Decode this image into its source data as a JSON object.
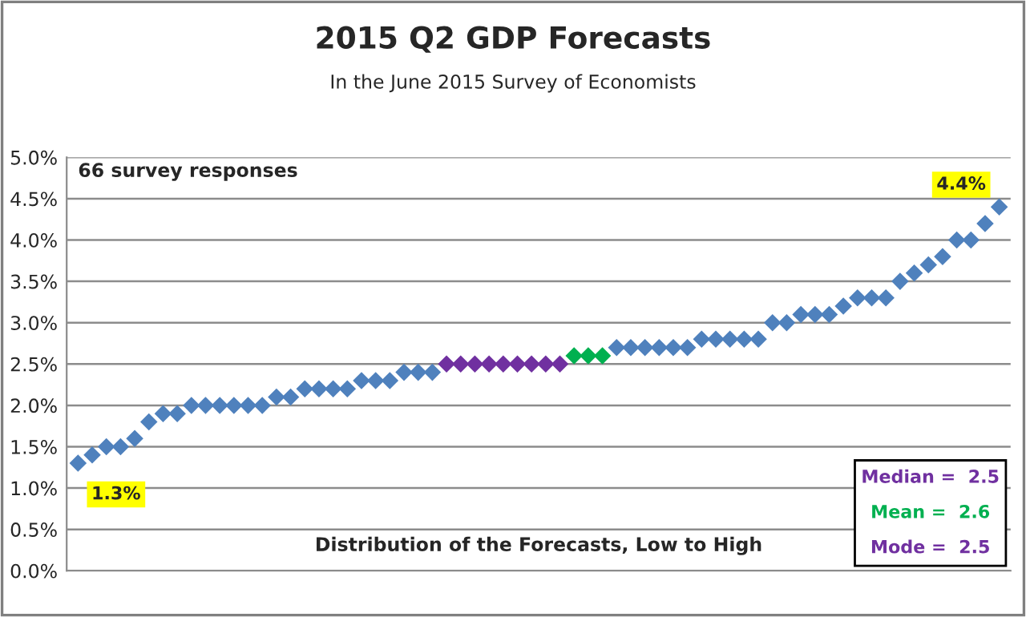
{
  "chart_data": {
    "type": "scatter",
    "title": "2015 Q2 GDP Forecasts",
    "subtitle": "In the June 2015 Survey of Economists",
    "categories": [
      null,
      null,
      null,
      null,
      null,
      null,
      null,
      null,
      null,
      null,
      null,
      null,
      null,
      null,
      null,
      null,
      null,
      null,
      null,
      null,
      null,
      null,
      null,
      null,
      null,
      null,
      null,
      null,
      null,
      null,
      null,
      null,
      null,
      null,
      null,
      null,
      null,
      null,
      null,
      null,
      null,
      null,
      null,
      null,
      null,
      null,
      null,
      null,
      null,
      null,
      null,
      null,
      null,
      null,
      null,
      null,
      null,
      null,
      null,
      null,
      null,
      null,
      null,
      null,
      null,
      null
    ],
    "values": [
      1.3,
      1.4,
      1.5,
      1.5,
      1.6,
      1.8,
      1.9,
      1.9,
      2.0,
      2.0,
      2.0,
      2.0,
      2.0,
      2.0,
      2.1,
      2.1,
      2.2,
      2.2,
      2.2,
      2.2,
      2.3,
      2.3,
      2.3,
      2.4,
      2.4,
      2.4,
      2.5,
      2.5,
      2.5,
      2.5,
      2.5,
      2.5,
      2.5,
      2.5,
      2.5,
      2.6,
      2.6,
      2.6,
      2.7,
      2.7,
      2.7,
      2.7,
      2.7,
      2.7,
      2.8,
      2.8,
      2.8,
      2.8,
      2.8,
      3.0,
      3.0,
      3.1,
      3.1,
      3.1,
      3.2,
      3.3,
      3.3,
      3.3,
      3.5,
      3.6,
      3.7,
      3.8,
      4.0,
      4.0,
      4.2,
      4.4
    ],
    "colors": [
      "#4f81bd",
      "#4f81bd",
      "#4f81bd",
      "#4f81bd",
      "#4f81bd",
      "#4f81bd",
      "#4f81bd",
      "#4f81bd",
      "#4f81bd",
      "#4f81bd",
      "#4f81bd",
      "#4f81bd",
      "#4f81bd",
      "#4f81bd",
      "#4f81bd",
      "#4f81bd",
      "#4f81bd",
      "#4f81bd",
      "#4f81bd",
      "#4f81bd",
      "#4f81bd",
      "#4f81bd",
      "#4f81bd",
      "#4f81bd",
      "#4f81bd",
      "#4f81bd",
      "#7030a0",
      "#7030a0",
      "#7030a0",
      "#7030a0",
      "#7030a0",
      "#7030a0",
      "#7030a0",
      "#7030a0",
      "#7030a0",
      "#00b050",
      "#00b050",
      "#00b050",
      "#4f81bd",
      "#4f81bd",
      "#4f81bd",
      "#4f81bd",
      "#4f81bd",
      "#4f81bd",
      "#4f81bd",
      "#4f81bd",
      "#4f81bd",
      "#4f81bd",
      "#4f81bd",
      "#4f81bd",
      "#4f81bd",
      "#4f81bd",
      "#4f81bd",
      "#4f81bd",
      "#4f81bd",
      "#4f81bd",
      "#4f81bd",
      "#4f81bd",
      "#4f81bd",
      "#4f81bd",
      "#4f81bd",
      "#4f81bd",
      "#4f81bd",
      "#4f81bd",
      "#4f81bd",
      "#4f81bd"
    ],
    "value_labels": [
      "1.3%",
      null,
      null,
      null,
      null,
      null,
      null,
      null,
      null,
      null,
      null,
      null,
      null,
      null,
      null,
      null,
      null,
      null,
      null,
      null,
      null,
      null,
      null,
      null,
      null,
      null,
      null,
      null,
      null,
      null,
      null,
      null,
      null,
      null,
      null,
      null,
      null,
      null,
      null,
      null,
      null,
      null,
      null,
      null,
      null,
      null,
      null,
      null,
      null,
      null,
      null,
      null,
      null,
      null,
      null,
      null,
      null,
      null,
      null,
      null,
      null,
      null,
      null,
      null,
      null,
      "4.4%"
    ],
    "ylim": [
      0,
      5
    ],
    "yticks": [
      {
        "value": 0,
        "label": "0.0%"
      },
      {
        "value": 0.5,
        "label": "0.5%"
      },
      {
        "value": 1,
        "label": "1.0%"
      },
      {
        "value": 1.5,
        "label": "1.5%"
      },
      {
        "value": 2,
        "label": "2.0%"
      },
      {
        "value": 2.5,
        "label": "2.5%"
      },
      {
        "value": 3,
        "label": "3.0%"
      },
      {
        "value": 3.5,
        "label": "3.5%"
      },
      {
        "value": 4,
        "label": "4.0%"
      },
      {
        "value": 4.5,
        "label": "4.5%"
      },
      {
        "value": 5,
        "label": "5.0%"
      }
    ],
    "grid": "y",
    "marker": "diamond",
    "tick_labels": "y",
    "legend": false,
    "annotations": [
      "66 survey responses",
      "Distribution of the Forecasts, Low to High",
      "Median =  2.5",
      "Mean =  2.6",
      "Mode =  2.5"
    ]
  }
}
